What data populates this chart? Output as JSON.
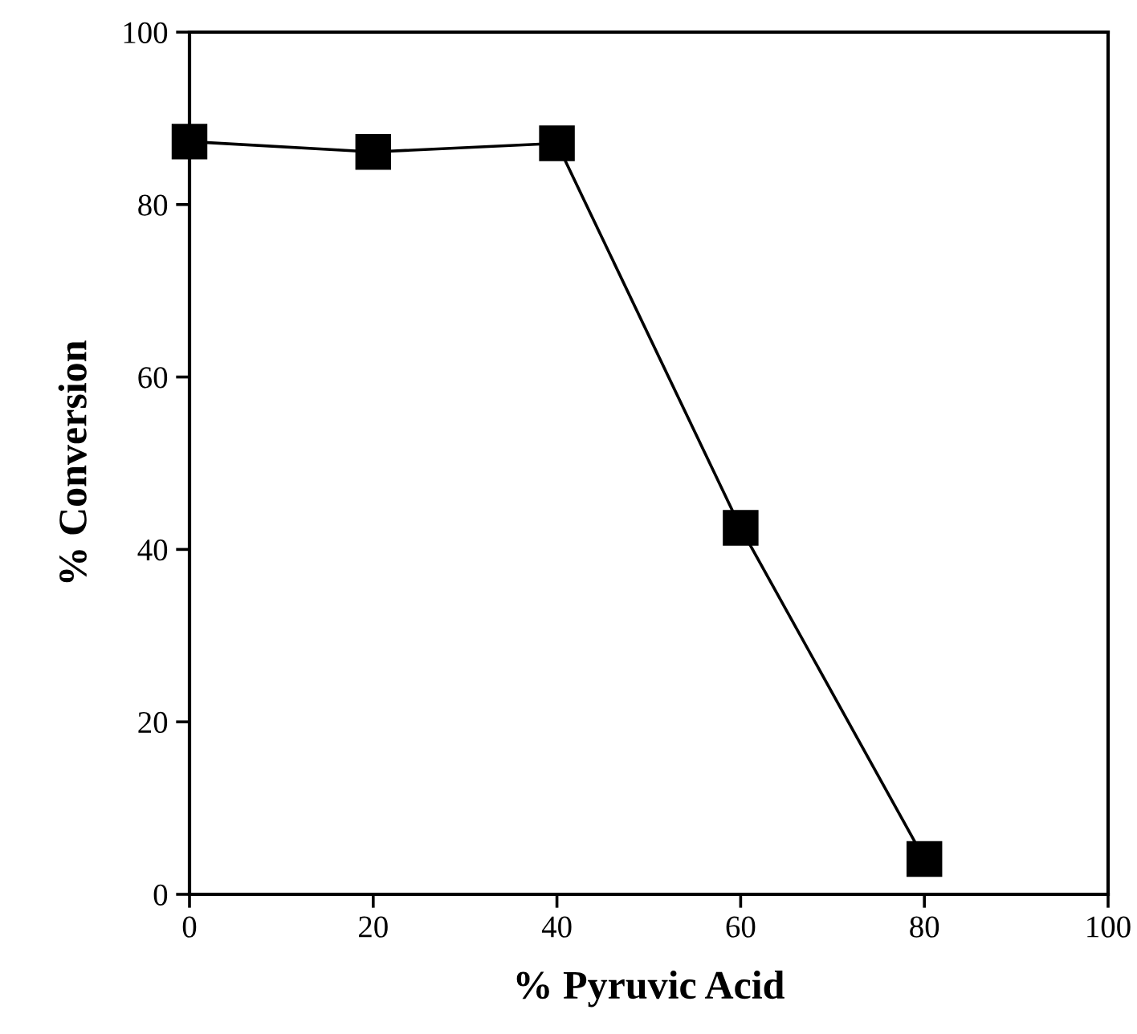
{
  "chart_data": {
    "type": "line",
    "xlabel": "% Pyruvic Acid",
    "ylabel": "% Conversion",
    "x": [
      0,
      20,
      40,
      60,
      80
    ],
    "series": [
      {
        "color": "#000000",
        "values": [
          87.3,
          86.1,
          87.1,
          42.5,
          4.1
        ]
      }
    ],
    "xlim": [
      0,
      100
    ],
    "xticks": [
      0,
      20,
      40,
      60,
      80,
      100
    ],
    "ylim": [
      0,
      100
    ],
    "yticks": [
      0,
      20,
      40,
      60,
      80,
      100
    ],
    "marker": "square",
    "line_style": "solid",
    "grid": false,
    "legend": false
  }
}
